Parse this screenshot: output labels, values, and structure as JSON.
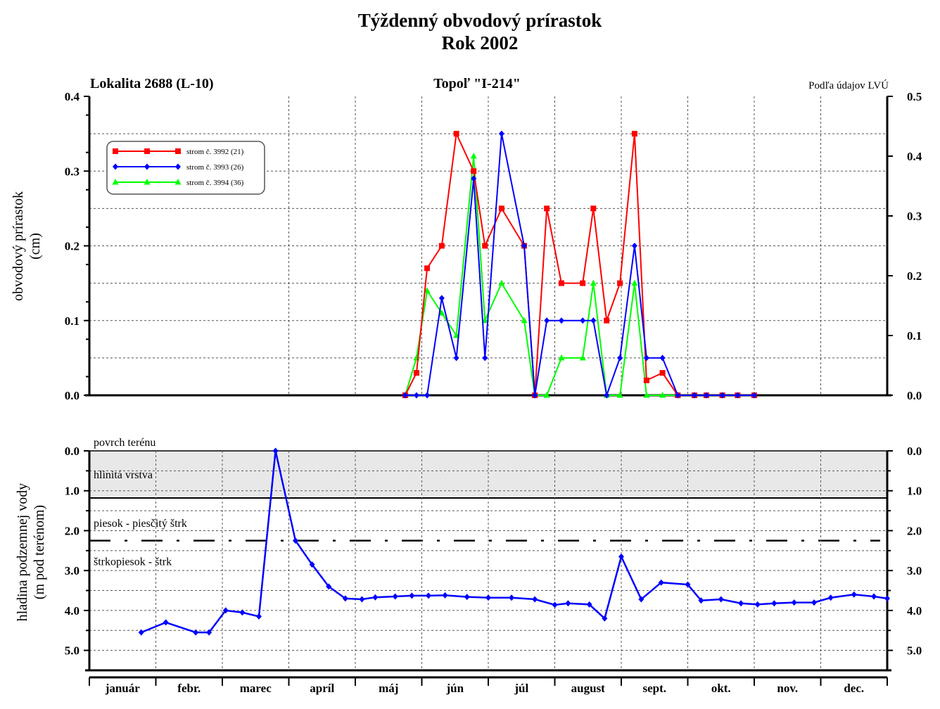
{
  "chart_data": [
    {
      "type": "line",
      "title": "Týždenný obvodový prírastok",
      "subtitle": "Rok 2002",
      "location": "Lokalita 2688 (L-10)",
      "tree": "Topoľ \"I-214\"",
      "source": "Podľa údajov LVÚ",
      "ylabel": [
        "obvodový prírastok",
        "(cm)"
      ],
      "ylim": [
        0,
        0.4
      ],
      "yticks": [
        "0.0",
        "0.1",
        "0.2",
        "0.3",
        "0.4"
      ],
      "y2lim": [
        0,
        0.5
      ],
      "y2ticks": [
        "0.0",
        "0.1",
        "0.2",
        "0.3",
        "0.4",
        "0.5"
      ],
      "grid": true,
      "legend_position": "top-left",
      "series": [
        {
          "name": "strom č. 3992 (21)",
          "color": "#ff0000",
          "marker": "square",
          "x": [
            4.75,
            4.92,
            5.08,
            5.3,
            5.52,
            5.78,
            5.95,
            6.2,
            6.54,
            6.7,
            6.88,
            7.1,
            7.42,
            7.58,
            7.78,
            7.98,
            8.2,
            8.38,
            8.62,
            8.85,
            9.1,
            9.28,
            9.52,
            9.75,
            10.0
          ],
          "values": [
            0.0,
            0.03,
            0.17,
            0.2,
            0.35,
            0.3,
            0.2,
            0.25,
            0.2,
            0.0,
            0.25,
            0.15,
            0.15,
            0.25,
            0.1,
            0.15,
            0.35,
            0.02,
            0.03,
            0.0,
            0.0,
            0.0,
            0.0,
            0.0,
            0.0
          ]
        },
        {
          "name": "strom č. 3993 (26)",
          "color": "#0000ff",
          "marker": "diamond",
          "x": [
            4.75,
            4.92,
            5.08,
            5.3,
            5.52,
            5.78,
            5.95,
            6.2,
            6.54,
            6.7,
            6.88,
            7.1,
            7.42,
            7.58,
            7.78,
            7.98,
            8.2,
            8.38,
            8.62,
            8.85,
            9.1,
            9.28,
            9.52,
            9.75,
            10.0
          ],
          "values": [
            0.0,
            0.0,
            0.0,
            0.13,
            0.05,
            0.29,
            0.05,
            0.35,
            0.2,
            0.0,
            0.1,
            0.1,
            0.1,
            0.1,
            0.0,
            0.05,
            0.2,
            0.05,
            0.05,
            0.0,
            0.0,
            0.0,
            0.0,
            0.0,
            0.0
          ]
        },
        {
          "name": "strom č. 3994 (36)",
          "color": "#00ff00",
          "marker": "triangle",
          "x": [
            4.75,
            4.92,
            5.08,
            5.3,
            5.52,
            5.78,
            5.95,
            6.2,
            6.54,
            6.7,
            6.88,
            7.1,
            7.42,
            7.58,
            7.78,
            7.98,
            8.2,
            8.38,
            8.62,
            8.85,
            9.1,
            9.28,
            9.52,
            9.75,
            10.0
          ],
          "values": [
            0.0,
            0.05,
            0.14,
            0.11,
            0.08,
            0.32,
            0.1,
            0.15,
            0.1,
            0.0,
            0.0,
            0.05,
            0.05,
            0.15,
            0.0,
            0.0,
            0.15,
            0.0,
            0.0,
            0.0,
            0.0,
            0.0,
            0.0,
            0.0,
            0.0
          ]
        }
      ]
    },
    {
      "type": "line",
      "ylabel": [
        "hladina podzemnej vody",
        "(m pod terénom)"
      ],
      "ylim": [
        0,
        5.5
      ],
      "inverted": true,
      "yticks": [
        "0.0",
        "1.0",
        "2.0",
        "3.0",
        "4.0",
        "5.0"
      ],
      "grid": true,
      "layers": [
        {
          "label": "povrch terénu",
          "depth": 0.0
        },
        {
          "label": "hlinitá vrstva",
          "from": 0.0,
          "to": 1.18,
          "fill": "#e8e8e8"
        },
        {
          "label": "piesok - piesčitý štrk",
          "boundary": 1.18
        },
        {
          "label": "štrkopiesok - štrk",
          "boundary": 2.25
        }
      ],
      "series": [
        {
          "color": "#0000ff",
          "marker": "diamond",
          "x": [
            0.78,
            1.15,
            1.6,
            1.8,
            2.05,
            2.3,
            2.55,
            2.8,
            3.1,
            3.35,
            3.6,
            3.85,
            4.1,
            4.3,
            4.6,
            4.85,
            5.1,
            5.35,
            5.68,
            6.0,
            6.35,
            6.7,
            7.0,
            7.2,
            7.52,
            7.75,
            8.0,
            8.3,
            8.6,
            9.0,
            9.2,
            9.5,
            9.8,
            10.05,
            10.3,
            10.6,
            10.9,
            11.15,
            11.5,
            11.8,
            12.0
          ],
          "values": [
            4.55,
            4.3,
            4.55,
            4.55,
            4.0,
            4.05,
            4.15,
            0.0,
            2.25,
            2.85,
            3.4,
            3.7,
            3.72,
            3.67,
            3.65,
            3.63,
            3.63,
            3.62,
            3.66,
            3.68,
            3.68,
            3.72,
            3.86,
            3.82,
            3.85,
            4.2,
            2.65,
            3.72,
            3.3,
            3.35,
            3.75,
            3.72,
            3.82,
            3.85,
            3.82,
            3.8,
            3.8,
            3.68,
            3.6,
            3.65,
            3.7
          ]
        }
      ]
    }
  ],
  "months": [
    "január",
    "febr.",
    "marec",
    "apríl",
    "máj",
    "jún",
    "júl",
    "august",
    "sept.",
    "okt.",
    "nov.",
    "dec."
  ]
}
